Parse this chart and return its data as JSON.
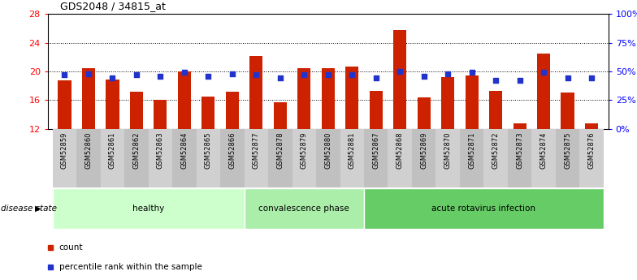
{
  "title": "GDS2048 / 34815_at",
  "samples": [
    "GSM52859",
    "GSM52860",
    "GSM52861",
    "GSM52862",
    "GSM52863",
    "GSM52864",
    "GSM52865",
    "GSM52866",
    "GSM52877",
    "GSM52878",
    "GSM52879",
    "GSM52880",
    "GSM52881",
    "GSM52867",
    "GSM52868",
    "GSM52869",
    "GSM52870",
    "GSM52871",
    "GSM52872",
    "GSM52873",
    "GSM52874",
    "GSM52875",
    "GSM52876"
  ],
  "counts": [
    18.8,
    20.4,
    18.9,
    17.2,
    16.0,
    20.0,
    16.5,
    17.2,
    22.2,
    15.7,
    20.4,
    20.5,
    20.7,
    17.3,
    25.8,
    16.4,
    19.2,
    19.4,
    17.3,
    12.8,
    22.5,
    17.0,
    12.8
  ],
  "percentile_ranks": [
    47,
    48,
    44,
    47,
    46,
    49,
    46,
    48,
    47,
    44,
    47,
    47,
    47,
    44,
    50,
    46,
    48,
    49,
    42,
    42,
    49,
    44,
    44
  ],
  "group_list": [
    [
      "healthy",
      0,
      8,
      "#ccffcc"
    ],
    [
      "convalescence phase",
      8,
      13,
      "#aaeeaa"
    ],
    [
      "acute rotavirus infection",
      13,
      23,
      "#66cc66"
    ]
  ],
  "bar_color": "#cc2200",
  "dot_color": "#2233cc",
  "ylim_left": [
    12,
    28
  ],
  "yticks_left": [
    12,
    16,
    20,
    24,
    28
  ],
  "ylim_right": [
    0,
    100
  ],
  "yticks_right": [
    0,
    25,
    50,
    75,
    100
  ],
  "bar_width": 0.55,
  "dot_size": 22
}
